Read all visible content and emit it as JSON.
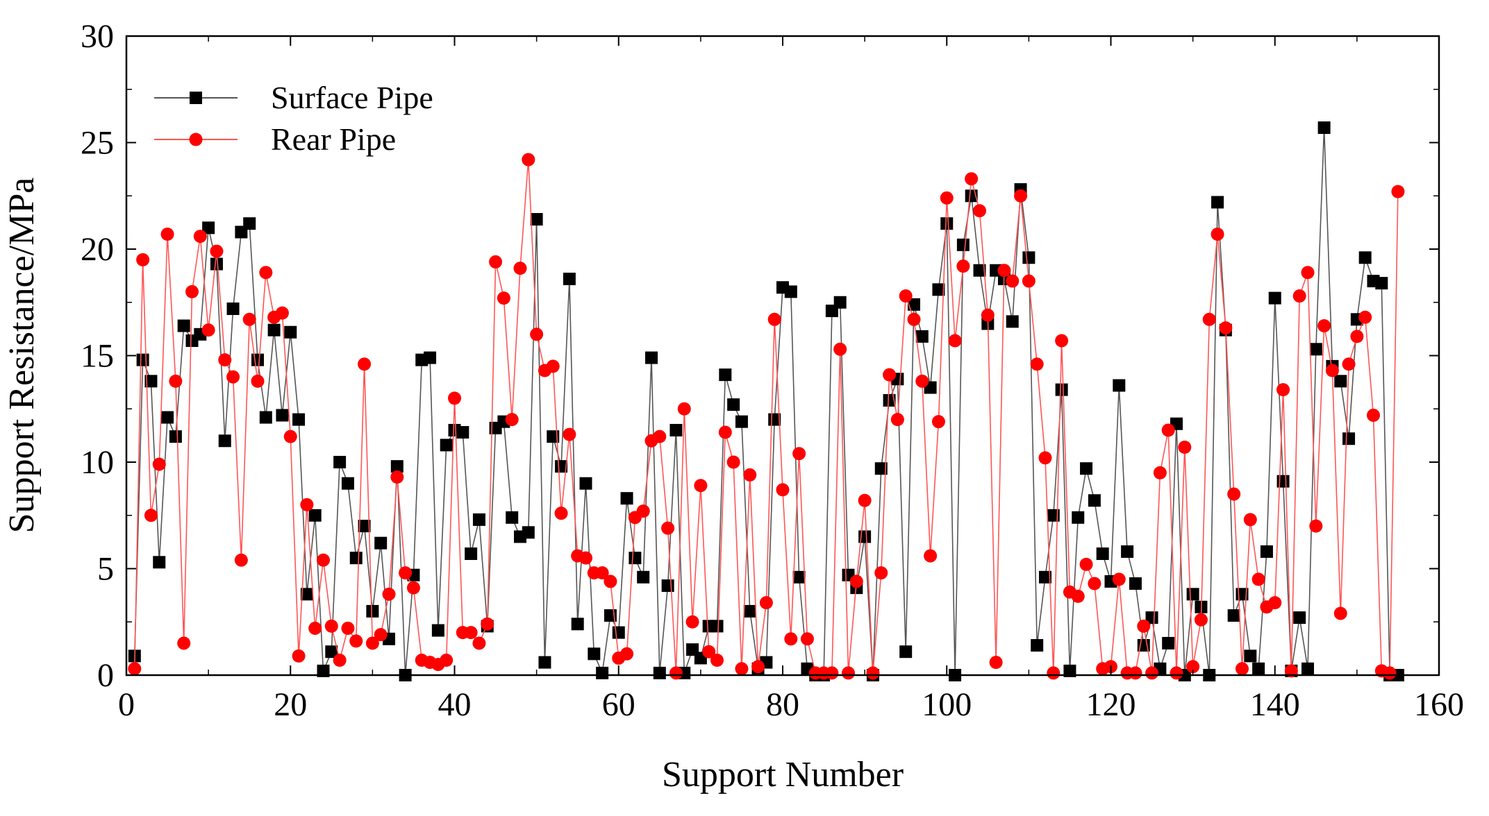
{
  "chart_data": {
    "type": "line",
    "xlabel": "Support Number",
    "ylabel": "Support Resistance/MPa",
    "xlim": [
      0,
      160
    ],
    "ylim": [
      0,
      30
    ],
    "xticks": [
      "0",
      "20",
      "40",
      "60",
      "80",
      "100",
      "120",
      "140",
      "160"
    ],
    "yticks": [
      "0",
      "5",
      "10",
      "15",
      "20",
      "25",
      "30"
    ],
    "grid": false,
    "legend_position": "top-left",
    "series": [
      {
        "name": "Surface Pipe",
        "color": "#000000",
        "line_color": "#555555",
        "marker": "square",
        "x": [
          1,
          2,
          3,
          4,
          5,
          6,
          7,
          8,
          9,
          10,
          11,
          12,
          13,
          14,
          15,
          16,
          17,
          18,
          19,
          20,
          21,
          22,
          23,
          24,
          25,
          26,
          27,
          28,
          29,
          30,
          31,
          32,
          33,
          34,
          35,
          36,
          37,
          38,
          39,
          40,
          41,
          42,
          43,
          44,
          45,
          46,
          47,
          48,
          49,
          50,
          51,
          52,
          53,
          54,
          55,
          56,
          57,
          58,
          59,
          60,
          61,
          62,
          63,
          64,
          65,
          66,
          67,
          68,
          69,
          70,
          71,
          72,
          73,
          74,
          75,
          76,
          77,
          78,
          79,
          80,
          81,
          82,
          83,
          84,
          85,
          86,
          87,
          88,
          89,
          90,
          91,
          92,
          93,
          94,
          95,
          96,
          97,
          98,
          99,
          100,
          101,
          102,
          103,
          104,
          105,
          106,
          107,
          108,
          109,
          110,
          111,
          112,
          113,
          114,
          115,
          116,
          117,
          118,
          119,
          120,
          121,
          122,
          123,
          124,
          125,
          126,
          127,
          128,
          129,
          130,
          131,
          132,
          133,
          134,
          135,
          136,
          137,
          138,
          139,
          140,
          141,
          142,
          143,
          144,
          145,
          146,
          147,
          148,
          149,
          150,
          151,
          152,
          153,
          154,
          155
        ],
        "y": [
          0.9,
          14.8,
          13.8,
          5.3,
          12.1,
          11.2,
          16.4,
          15.7,
          16.0,
          21.0,
          19.3,
          11.0,
          17.2,
          20.8,
          21.2,
          14.8,
          12.1,
          16.2,
          12.2,
          16.1,
          12.0,
          3.8,
          7.5,
          0.2,
          1.1,
          10.0,
          9.0,
          5.5,
          7.0,
          3.0,
          6.2,
          1.7,
          9.8,
          0.0,
          4.7,
          14.8,
          14.9,
          2.1,
          10.8,
          11.5,
          11.4,
          5.7,
          7.3,
          2.3,
          11.6,
          11.9,
          7.4,
          6.5,
          6.7,
          21.4,
          0.6,
          11.2,
          9.8,
          18.6,
          2.4,
          9.0,
          1.0,
          0.1,
          2.8,
          2.0,
          8.3,
          5.5,
          4.6,
          14.9,
          0.1,
          4.2,
          11.5,
          0.1,
          1.2,
          0.8,
          2.3,
          2.3,
          14.1,
          12.7,
          11.9,
          3.0,
          0.3,
          0.6,
          12.0,
          18.2,
          18.0,
          4.6,
          0.3,
          0.0,
          0.0,
          17.1,
          17.5,
          4.7,
          4.1,
          6.5,
          0.0,
          9.7,
          12.9,
          13.9,
          1.1,
          17.4,
          15.9,
          13.5,
          18.1,
          21.2,
          0.0,
          20.2,
          22.5,
          19.0,
          16.5,
          19.0,
          18.6,
          16.6,
          22.8,
          19.6,
          1.4,
          4.6,
          7.5,
          13.4,
          0.2,
          7.4,
          9.7,
          8.2,
          5.7,
          4.4,
          13.6,
          5.8,
          4.3,
          1.4,
          2.7,
          0.3,
          1.5,
          11.8,
          0.0,
          3.8,
          3.2,
          0.0,
          22.2,
          16.2,
          2.8,
          3.8,
          0.9,
          0.3,
          5.8,
          17.7,
          9.1,
          0.2,
          2.7,
          0.3,
          15.3,
          25.7,
          14.5,
          13.8,
          11.1,
          16.7,
          19.6,
          18.5,
          18.4,
          0.0,
          0.0
        ]
      },
      {
        "name": "Rear Pipe",
        "color": "#ff0000",
        "line_color": "#ff5555",
        "marker": "circle",
        "x": [
          1,
          2,
          3,
          4,
          5,
          6,
          7,
          8,
          9,
          10,
          11,
          12,
          13,
          14,
          15,
          16,
          17,
          18,
          19,
          20,
          21,
          22,
          23,
          24,
          25,
          26,
          27,
          28,
          29,
          30,
          31,
          32,
          33,
          34,
          35,
          36,
          37,
          38,
          39,
          40,
          41,
          42,
          43,
          44,
          45,
          46,
          47,
          48,
          49,
          50,
          51,
          52,
          53,
          54,
          55,
          56,
          57,
          58,
          59,
          60,
          61,
          62,
          63,
          64,
          65,
          66,
          67,
          68,
          69,
          70,
          71,
          72,
          73,
          74,
          75,
          76,
          77,
          78,
          79,
          80,
          81,
          82,
          83,
          84,
          85,
          86,
          87,
          88,
          89,
          90,
          91,
          92,
          93,
          94,
          95,
          96,
          97,
          98,
          99,
          100,
          101,
          102,
          103,
          104,
          105,
          106,
          107,
          108,
          109,
          110,
          111,
          112,
          113,
          114,
          115,
          116,
          117,
          118,
          119,
          120,
          121,
          122,
          123,
          124,
          125,
          126,
          127,
          128,
          129,
          130,
          131,
          132,
          133,
          134,
          135,
          136,
          137,
          138,
          139,
          140,
          141,
          142,
          143,
          144,
          145,
          146,
          147,
          148,
          149,
          150,
          151,
          152,
          153,
          154,
          155
        ],
        "y": [
          0.3,
          19.5,
          7.5,
          9.9,
          20.7,
          13.8,
          1.5,
          18.0,
          20.6,
          16.2,
          19.9,
          14.8,
          14.0,
          5.4,
          16.7,
          13.8,
          18.9,
          16.8,
          17.0,
          11.2,
          0.9,
          8.0,
          2.2,
          5.4,
          2.3,
          0.7,
          2.2,
          1.6,
          14.6,
          1.5,
          1.9,
          3.8,
          9.3,
          4.8,
          4.1,
          0.7,
          0.6,
          0.5,
          0.7,
          13.0,
          2.0,
          2.0,
          1.5,
          2.4,
          19.4,
          17.7,
          12.0,
          19.1,
          24.2,
          16.0,
          14.3,
          14.5,
          7.6,
          11.3,
          5.6,
          5.5,
          4.8,
          4.8,
          4.4,
          0.8,
          1.0,
          7.4,
          7.7,
          11.0,
          11.2,
          6.9,
          0.1,
          12.5,
          2.5,
          8.9,
          1.1,
          0.7,
          11.4,
          10.0,
          0.3,
          9.4,
          0.4,
          3.4,
          16.7,
          8.7,
          1.7,
          10.4,
          1.7,
          0.1,
          0.1,
          0.1,
          15.3,
          0.1,
          4.4,
          8.2,
          0.1,
          4.8,
          14.1,
          12.0,
          17.8,
          16.7,
          13.8,
          5.6,
          11.9,
          22.4,
          15.7,
          19.2,
          23.3,
          21.8,
          16.9,
          0.6,
          19.0,
          18.5,
          22.5,
          18.5,
          14.6,
          10.2,
          0.1,
          15.7,
          3.9,
          3.7,
          5.2,
          4.3,
          0.3,
          0.4,
          4.5,
          0.1,
          0.1,
          2.3,
          0.1,
          9.5,
          11.5,
          0.1,
          10.7,
          0.4,
          2.6,
          16.7,
          20.7,
          16.3,
          8.5,
          0.3,
          7.3,
          4.5,
          3.2,
          3.4,
          13.4,
          0.2,
          17.8,
          18.9,
          7.0,
          16.4,
          14.3,
          2.9,
          14.6,
          15.9,
          16.8,
          12.2,
          0.2,
          0.1,
          22.7
        ]
      }
    ]
  }
}
